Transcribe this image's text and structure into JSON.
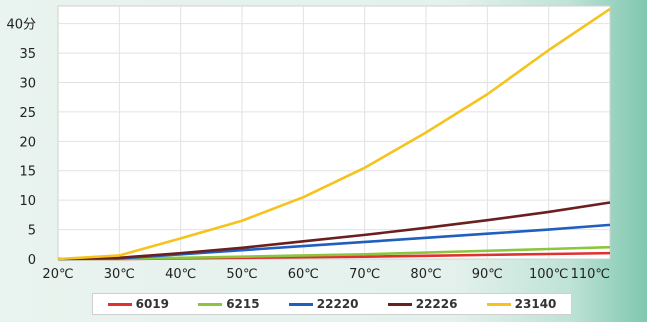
{
  "chart_data": {
    "type": "line",
    "title": "",
    "xlabel": "",
    "ylabel": "",
    "x": [
      "20℃",
      "30℃",
      "40℃",
      "50℃",
      "60℃",
      "70℃",
      "80℃",
      "90℃",
      "100℃",
      "110℃"
    ],
    "y_ticks": [
      "0",
      "5",
      "10",
      "15",
      "20",
      "25",
      "30",
      "35",
      "40分"
    ],
    "ylim": [
      0,
      43
    ],
    "grid": true,
    "legend_position": "bottom",
    "series": [
      {
        "name": "6019",
        "color": "#e03030",
        "values": [
          0,
          0,
          0.1,
          0.2,
          0.3,
          0.4,
          0.55,
          0.7,
          0.85,
          1.0
        ]
      },
      {
        "name": "6215",
        "color": "#8cc63f",
        "values": [
          0,
          0,
          0.2,
          0.4,
          0.6,
          0.8,
          1.1,
          1.4,
          1.7,
          2.0
        ]
      },
      {
        "name": "22220",
        "color": "#1f5fbf",
        "values": [
          0,
          0.1,
          0.8,
          1.5,
          2.2,
          2.9,
          3.6,
          4.3,
          5.0,
          5.8
        ]
      },
      {
        "name": "22226",
        "color": "#6b1f1f",
        "values": [
          0,
          0.2,
          1.0,
          1.9,
          3.0,
          4.1,
          5.3,
          6.6,
          8.0,
          9.6
        ]
      },
      {
        "name": "23140",
        "color": "#f5c31c",
        "values": [
          0,
          0.6,
          3.5,
          6.5,
          10.5,
          15.5,
          21.5,
          28.0,
          35.5,
          42.5
        ]
      }
    ]
  }
}
